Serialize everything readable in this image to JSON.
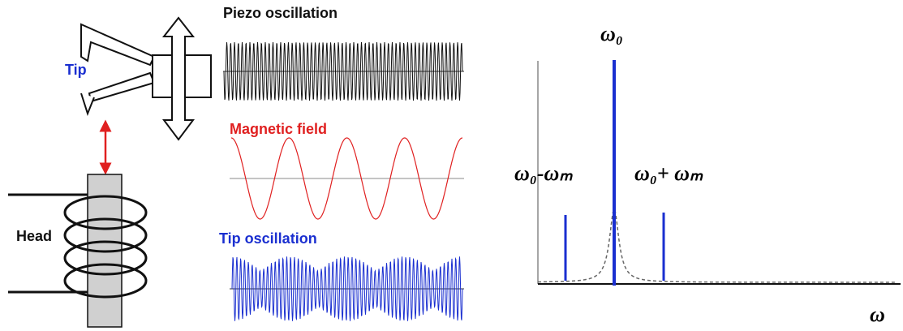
{
  "left": {
    "tip": "Tip",
    "head": "Head"
  },
  "waves": {
    "piezo": "Piezo oscillation",
    "magnetic": "Magnetic field",
    "tip_osc": "Tip oscillation"
  },
  "spectrum": {
    "center": "ω₀",
    "lower": "ω₀-ωₘ",
    "upper": "ω₀+ ωₘ",
    "axis": "ω"
  }
}
